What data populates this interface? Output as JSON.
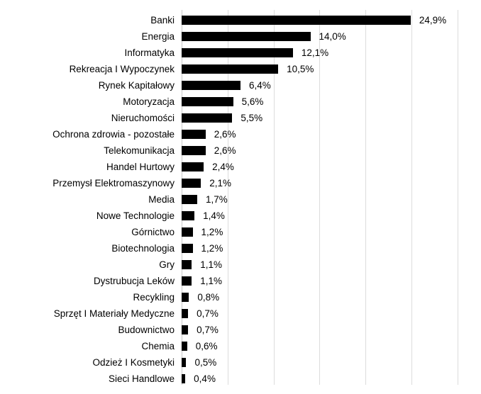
{
  "chart_data": {
    "type": "bar",
    "orientation": "horizontal",
    "title": "",
    "xlabel": "",
    "ylabel": "",
    "categories": [
      "Banki",
      "Energia",
      "Informatyka",
      "Rekreacja I Wypoczynek",
      "Rynek Kapitałowy",
      "Motoryzacja",
      "Nieruchomości",
      "Ochrona zdrowia - pozostałe",
      "Telekomunikacja",
      "Handel Hurtowy",
      "Przemysł Elektromaszynowy",
      "Media",
      "Nowe Technologie",
      "Górnictwo",
      "Biotechnologia",
      "Gry",
      "Dystrubucja Leków",
      "Recykling",
      "Sprzęt I Materiały Medyczne",
      "Budownictwo",
      "Chemia",
      "Odzież I Kosmetyki",
      "Sieci Handlowe"
    ],
    "values": [
      24.9,
      14.0,
      12.1,
      10.5,
      6.4,
      5.6,
      5.5,
      2.6,
      2.6,
      2.4,
      2.1,
      1.7,
      1.4,
      1.2,
      1.2,
      1.1,
      1.1,
      0.8,
      0.7,
      0.7,
      0.6,
      0.5,
      0.4
    ],
    "value_labels": [
      "24,9%",
      "14,0%",
      "12,1%",
      "10,5%",
      "6,4%",
      "5,6%",
      "5,5%",
      "2,6%",
      "2,6%",
      "2,4%",
      "2,1%",
      "1,7%",
      "1,4%",
      "1,2%",
      "1,2%",
      "1,1%",
      "1,1%",
      "0,8%",
      "0,7%",
      "0,7%",
      "0,6%",
      "0,5%",
      "0,4%"
    ],
    "xlim": [
      0,
      30
    ],
    "grid_step": 5,
    "grid": true,
    "legend": false,
    "axis_tick_labels_visible": false,
    "colors": {
      "bar": "#000000",
      "gridline": "#dcdcdc",
      "axis_line": "#c9c9c9",
      "text": "#000000",
      "background": "#ffffff"
    }
  }
}
